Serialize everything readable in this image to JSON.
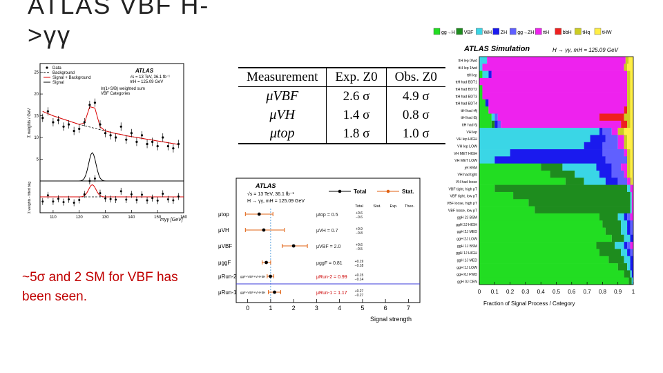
{
  "slide": {
    "title": "ATLAS VBF H->γγ",
    "note": "~5σ and 2 SM for VBF has been seen."
  },
  "colors": {
    "accent_red": "#c00000",
    "data_orange": "#e06010"
  },
  "chart_data": [
    {
      "type": "scatter",
      "panel": "diphoton-mass-spectrum",
      "legend": [
        "Data",
        "Background",
        "Signal + Background",
        "Signal"
      ],
      "atlas_label": "ATLAS",
      "annotations": [
        "√s = 13 TeV, 36.1 fb⁻¹",
        "mH = 125.09 GeV",
        "ln(1+S/B) weighted sum",
        "VBF Categories"
      ],
      "xlabel": "mγγ [GeV]",
      "ylabel_top": "Σ weights / GeV",
      "ylabel_bottom": "Σ weights - fitted bkg",
      "xlim": [
        105,
        160
      ],
      "x_ticks": [
        "110",
        "120",
        "130",
        "140",
        "150",
        "160"
      ],
      "y_ticks_top": [
        "5",
        "10",
        "15",
        "20",
        "25"
      ],
      "data_x": [
        106,
        108,
        110,
        112,
        114,
        116,
        118,
        120,
        122,
        124,
        126,
        128,
        130,
        132,
        134,
        136,
        138,
        140,
        142,
        144,
        146,
        148,
        150,
        152,
        154,
        156,
        158
      ],
      "data_y": [
        14.5,
        16,
        13.5,
        14,
        12.5,
        13,
        11.5,
        12,
        13.5,
        17.5,
        18,
        13,
        11,
        10.5,
        10,
        12.5,
        9.5,
        11,
        9,
        10.5,
        8.5,
        9,
        8,
        10,
        8,
        7.5,
        8.5
      ],
      "bkg_y": [
        16,
        15.5,
        15,
        14.6,
        14.2,
        13.8,
        13.4,
        13,
        12.7,
        12.4,
        12.1,
        11.8,
        11.5,
        11.2,
        10.9,
        10.7,
        10.4,
        10.2,
        10,
        9.8,
        9.6,
        9.4,
        9.2,
        9.0,
        8.8,
        8.6,
        8.4
      ]
    },
    {
      "type": "table",
      "panel": "significance-table",
      "columns": [
        "Measurement",
        "Exp. Z0",
        "Obs. Z0"
      ],
      "rows": [
        [
          "μVBF",
          "2.6 σ",
          "4.9 σ"
        ],
        [
          "μVH",
          "1.4 σ",
          "0.8 σ"
        ],
        [
          "μtop",
          "1.8 σ",
          "1.0 σ"
        ]
      ]
    },
    {
      "type": "scatter",
      "panel": "signal-strength",
      "atlas_label": "ATLAS",
      "annotations": [
        "√s = 13 TeV, 36.1 fb⁻¹",
        "H → γγ, mH = 125.09 GeV"
      ],
      "legend": [
        "Total",
        "Stat."
      ],
      "table_headers": [
        "Total",
        "Stat.",
        "Exp.",
        "Theo."
      ],
      "xlabel": "Signal strength",
      "xlim": [
        -0.5,
        7.5
      ],
      "x_ticks": [
        "0",
        "1",
        "2",
        "3",
        "4",
        "5",
        "6",
        "7"
      ],
      "rows": [
        {
          "label": "μtop",
          "value": 0.5,
          "total_err": [
            0.6,
            0.6
          ],
          "text": "μtop = 0.5"
        },
        {
          "label": "μVH",
          "value": 0.7,
          "total_err": [
            0.9,
            0.8
          ],
          "text": "μVH = 0.7"
        },
        {
          "label": "μVBF",
          "value": 2.0,
          "total_err": [
            0.6,
            0.5
          ],
          "text": "μVBF = 2.0"
        },
        {
          "label": "μggF",
          "value": 0.81,
          "total_err": [
            0.19,
            0.18
          ],
          "text": "μggF = 0.81"
        },
        {
          "label": "μRun-2",
          "value": 0.99,
          "total_err": [
            0.15,
            0.14
          ],
          "text": "μRun-2 = 0.99",
          "sub": "ggF+VBF+VH+ttH"
        },
        {
          "label": "μRun-1",
          "value": 1.17,
          "total_err": [
            0.27,
            0.27
          ],
          "text": "μRun-1 = 1.17",
          "sub": "ggF+VBF+VH+ttH"
        }
      ]
    },
    {
      "type": "bar",
      "orientation": "horizontal",
      "stacked": true,
      "panel": "category-composition",
      "atlas_label": "ATLAS Simulation",
      "annotation": "H → γγ, mH = 125.09 GeV",
      "xlabel": "Fraction of Signal Process / Category",
      "xlim": [
        0,
        1
      ],
      "x_ticks": [
        "0",
        "0.1",
        "0.2",
        "0.3",
        "0.4",
        "0.5",
        "0.6",
        "0.7",
        "0.8",
        "0.9",
        "1"
      ],
      "processes": [
        {
          "name": "gg→H",
          "color": "#22dd22"
        },
        {
          "name": "VBF",
          "color": "#1e8c1e"
        },
        {
          "name": "WH",
          "color": "#3ad6e6"
        },
        {
          "name": "ZH",
          "color": "#1a1aee"
        },
        {
          "name": "gg→ZH",
          "color": "#6060ff"
        },
        {
          "name": "ttH",
          "color": "#ee22ee"
        },
        {
          "name": "bbH",
          "color": "#ee2020"
        },
        {
          "name": "tHq",
          "color": "#cccc22"
        },
        {
          "name": "tHW",
          "color": "#ffee44"
        }
      ],
      "categories": [
        "ttH lep 0fwd",
        "ttH lep 1fwd",
        "ttH lep",
        "ttH had BDT1",
        "ttH had BDT2",
        "ttH had BDT3",
        "ttH had BDT4",
        "ttH had t4j",
        "ttH had t5j",
        "ttH had 6j",
        "VH lep",
        "VH lep HIGH",
        "VH lep LOW",
        "VH MET HIGH",
        "VH MET LOW",
        "jet BSM",
        "VH had tight",
        "VH had loose",
        "VBF tight, high pT",
        "VBF tight, low pT",
        "VBF loose, high pT",
        "VBF loose, low pT",
        "ggH 2J BSM",
        "ggH 2J HIGH",
        "ggH 2J MED",
        "ggH 2J LOW",
        "ggH 1J BSM",
        "ggH 1J HIGH",
        "ggH 1J MED",
        "ggH 1J LOW",
        "ggH 0J FWD",
        "ggH 0J CEN"
      ],
      "fractions": [
        [
          0.0,
          0.0,
          0.05,
          0.0,
          0.0,
          0.9,
          0.0,
          0.02,
          0.03
        ],
        [
          0.0,
          0.0,
          0.02,
          0.0,
          0.0,
          0.92,
          0.0,
          0.02,
          0.04
        ],
        [
          0.02,
          0.0,
          0.04,
          0.02,
          0.0,
          0.88,
          0.0,
          0.02,
          0.02
        ],
        [
          0.0,
          0.0,
          0.0,
          0.0,
          0.0,
          0.96,
          0.0,
          0.02,
          0.02
        ],
        [
          0.02,
          0.0,
          0.0,
          0.0,
          0.0,
          0.94,
          0.0,
          0.02,
          0.02
        ],
        [
          0.02,
          0.0,
          0.0,
          0.0,
          0.0,
          0.94,
          0.0,
          0.02,
          0.02
        ],
        [
          0.04,
          0.0,
          0.0,
          0.02,
          0.0,
          0.9,
          0.0,
          0.02,
          0.02
        ],
        [
          0.06,
          0.0,
          0.0,
          0.0,
          0.0,
          0.88,
          0.02,
          0.02,
          0.02
        ],
        [
          0.08,
          0.0,
          0.02,
          0.0,
          0.02,
          0.66,
          0.16,
          0.04,
          0.02
        ],
        [
          0.08,
          0.02,
          0.0,
          0.02,
          0.02,
          0.78,
          0.04,
          0.02,
          0.02
        ],
        [
          0.0,
          0.0,
          0.78,
          0.02,
          0.06,
          0.04,
          0.0,
          0.04,
          0.06
        ],
        [
          0.0,
          0.0,
          0.72,
          0.1,
          0.08,
          0.04,
          0.0,
          0.02,
          0.04
        ],
        [
          0.0,
          0.0,
          0.68,
          0.12,
          0.1,
          0.04,
          0.0,
          0.02,
          0.04
        ],
        [
          0.0,
          0.0,
          0.2,
          0.6,
          0.14,
          0.02,
          0.0,
          0.02,
          0.02
        ],
        [
          0.0,
          0.0,
          0.1,
          0.72,
          0.14,
          0.0,
          0.0,
          0.02,
          0.02
        ],
        [
          0.4,
          0.14,
          0.22,
          0.1,
          0.06,
          0.04,
          0.0,
          0.02,
          0.02
        ],
        [
          0.46,
          0.16,
          0.16,
          0.08,
          0.08,
          0.02,
          0.0,
          0.02,
          0.02
        ],
        [
          0.56,
          0.12,
          0.14,
          0.08,
          0.06,
          0.02,
          0.0,
          0.01,
          0.01
        ],
        [
          0.1,
          0.86,
          0.02,
          0.0,
          0.0,
          0.02,
          0.0,
          0.0,
          0.0
        ],
        [
          0.22,
          0.76,
          0.01,
          0.0,
          0.0,
          0.01,
          0.0,
          0.0,
          0.0
        ],
        [
          0.32,
          0.66,
          0.01,
          0.0,
          0.0,
          0.01,
          0.0,
          0.0,
          0.0
        ],
        [
          0.36,
          0.62,
          0.01,
          0.0,
          0.0,
          0.01,
          0.0,
          0.0,
          0.0
        ],
        [
          0.78,
          0.12,
          0.04,
          0.02,
          0.02,
          0.02,
          0.0,
          0.0,
          0.0
        ],
        [
          0.8,
          0.12,
          0.04,
          0.02,
          0.02,
          0.0,
          0.0,
          0.0,
          0.0
        ],
        [
          0.82,
          0.1,
          0.04,
          0.02,
          0.02,
          0.0,
          0.0,
          0.0,
          0.0
        ],
        [
          0.86,
          0.08,
          0.04,
          0.02,
          0.0,
          0.0,
          0.0,
          0.0,
          0.0
        ],
        [
          0.76,
          0.12,
          0.06,
          0.02,
          0.02,
          0.02,
          0.0,
          0.0,
          0.0
        ],
        [
          0.78,
          0.14,
          0.04,
          0.02,
          0.02,
          0.0,
          0.0,
          0.0,
          0.0
        ],
        [
          0.84,
          0.1,
          0.04,
          0.02,
          0.0,
          0.0,
          0.0,
          0.0,
          0.0
        ],
        [
          0.9,
          0.06,
          0.02,
          0.02,
          0.0,
          0.0,
          0.0,
          0.0,
          0.0
        ],
        [
          0.94,
          0.04,
          0.01,
          0.01,
          0.0,
          0.0,
          0.0,
          0.0,
          0.0
        ],
        [
          0.97,
          0.02,
          0.01,
          0.0,
          0.0,
          0.0,
          0.0,
          0.0,
          0.0
        ]
      ]
    }
  ]
}
